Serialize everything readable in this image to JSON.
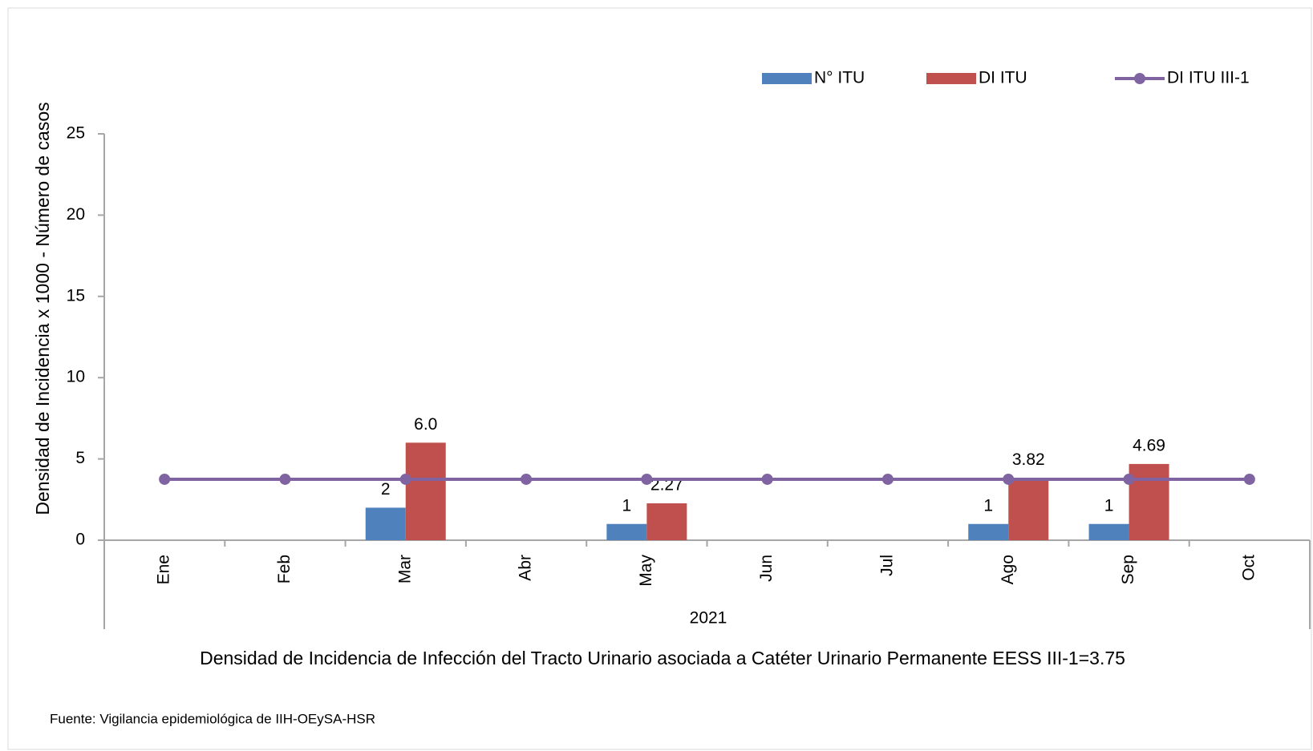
{
  "chart_data": {
    "type": "bar",
    "y_label": "Densidad de Incidencia x 1000 - Número de casos",
    "x_group_label": "2021",
    "title": "Densidad de Incidencia de Infección del Tracto Urinario asociada a Catéter Urinario Permanente  EESS III-1=3.75",
    "source": "Fuente: Vigilancia epidemiológica de IIH-OEySA-HSR",
    "categories": [
      "Ene",
      "Feb",
      "Mar",
      "Abr",
      "May",
      "Jun",
      "Jul",
      "Ago",
      "Sep",
      "Oct"
    ],
    "series": [
      {
        "name": "N° ITU",
        "type": "bar",
        "color": "#4f81bd",
        "values": [
          null,
          null,
          2,
          null,
          1,
          null,
          null,
          1,
          1,
          null
        ]
      },
      {
        "name": "DI ITU",
        "type": "bar",
        "color": "#c0504d",
        "values": [
          null,
          null,
          6.0,
          null,
          2.27,
          null,
          null,
          3.82,
          4.69,
          null
        ],
        "value_labels": [
          null,
          null,
          "6.0",
          null,
          "2.27",
          null,
          null,
          "3.82",
          "4.69",
          null
        ]
      },
      {
        "name": "DI ITU III-1",
        "type": "line",
        "color": "#8064a2",
        "values": [
          3.75,
          3.75,
          3.75,
          3.75,
          3.75,
          3.75,
          3.75,
          3.75,
          3.75,
          3.75
        ]
      }
    ],
    "ylim": [
      0,
      25
    ],
    "yticks": [
      0,
      5,
      10,
      15,
      20,
      25
    ],
    "legend": "top-right"
  }
}
